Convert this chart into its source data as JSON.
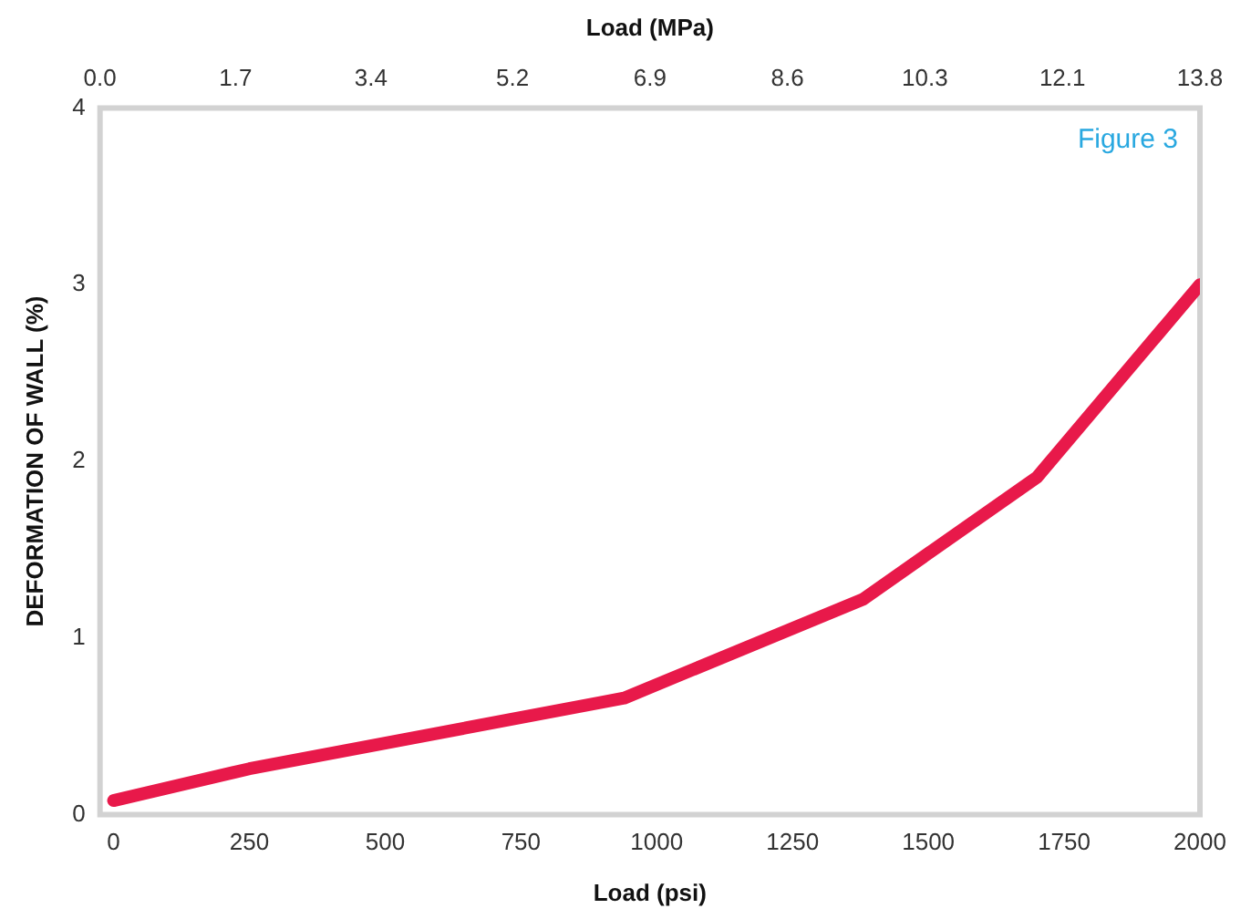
{
  "chart_data": {
    "type": "line",
    "xlabel": "Load (psi)",
    "x2label": "Load (MPa)",
    "ylabel": "DEFORMATION OF WALL (%)",
    "annotations": [
      "Figure 3"
    ],
    "x": [
      0,
      250,
      940,
      1380,
      1700,
      2000
    ],
    "series": [
      {
        "color": "#e8194a",
        "values": [
          0.08,
          0.26,
          0.66,
          1.22,
          1.91,
          3.0
        ]
      }
    ],
    "xlim": [
      -25,
      2000
    ],
    "xticks": [
      0,
      250,
      500,
      750,
      1000,
      1250,
      1500,
      1750,
      2000
    ],
    "x2lim": [
      0,
      13.8
    ],
    "x2ticks": [
      {
        "value": 0,
        "label": "0.0"
      },
      1.7,
      3.4,
      {
        "value": 5.175,
        "label": "5.2"
      },
      6.9,
      {
        "value": 8.625,
        "label": "8.6"
      },
      {
        "value": 10.35,
        "label": "10.3"
      },
      {
        "value": 12.075,
        "label": "12.1"
      },
      13.8
    ],
    "ylim": [
      0,
      4
    ],
    "yticks": [
      0,
      1,
      2,
      3,
      4
    ],
    "grid": false,
    "legend": false,
    "marker": "none",
    "line_style": "solid"
  }
}
